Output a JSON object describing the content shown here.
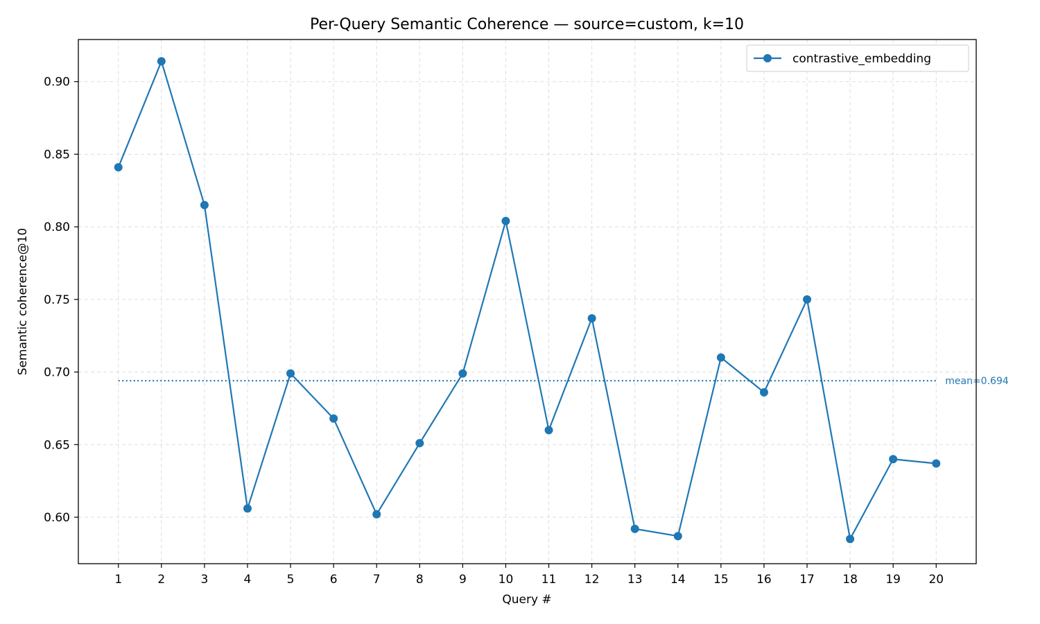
{
  "chart_data": {
    "type": "line",
    "title": "Per-Query Semantic Coherence — source=custom, k=10",
    "xlabel": "Query #",
    "ylabel": "Semantic coherence@10",
    "x": [
      1,
      2,
      3,
      4,
      5,
      6,
      7,
      8,
      9,
      10,
      11,
      12,
      13,
      14,
      15,
      16,
      17,
      18,
      19,
      20
    ],
    "xticks": [
      "1",
      "2",
      "3",
      "4",
      "5",
      "6",
      "7",
      "8",
      "9",
      "10",
      "11",
      "12",
      "13",
      "14",
      "15",
      "16",
      "17",
      "18",
      "19",
      "20"
    ],
    "yticks": [
      "0.60",
      "0.65",
      "0.70",
      "0.75",
      "0.80",
      "0.85",
      "0.90"
    ],
    "ytick_values": [
      0.6,
      0.65,
      0.7,
      0.75,
      0.8,
      0.85,
      0.9
    ],
    "xlim": [
      0.07,
      20.93
    ],
    "ylim": [
      0.568,
      0.929
    ],
    "grid": true,
    "legend_position": "top-right",
    "series": [
      {
        "name": "contrastive_embedding",
        "color": "#1f77b4",
        "values": [
          0.841,
          0.914,
          0.815,
          0.606,
          0.699,
          0.668,
          0.602,
          0.651,
          0.699,
          0.804,
          0.66,
          0.737,
          0.592,
          0.587,
          0.71,
          0.686,
          0.75,
          0.585,
          0.64,
          0.637
        ]
      }
    ],
    "mean_line": {
      "value": 0.694,
      "label": "mean=0.694",
      "color": "#1f77b4"
    }
  }
}
